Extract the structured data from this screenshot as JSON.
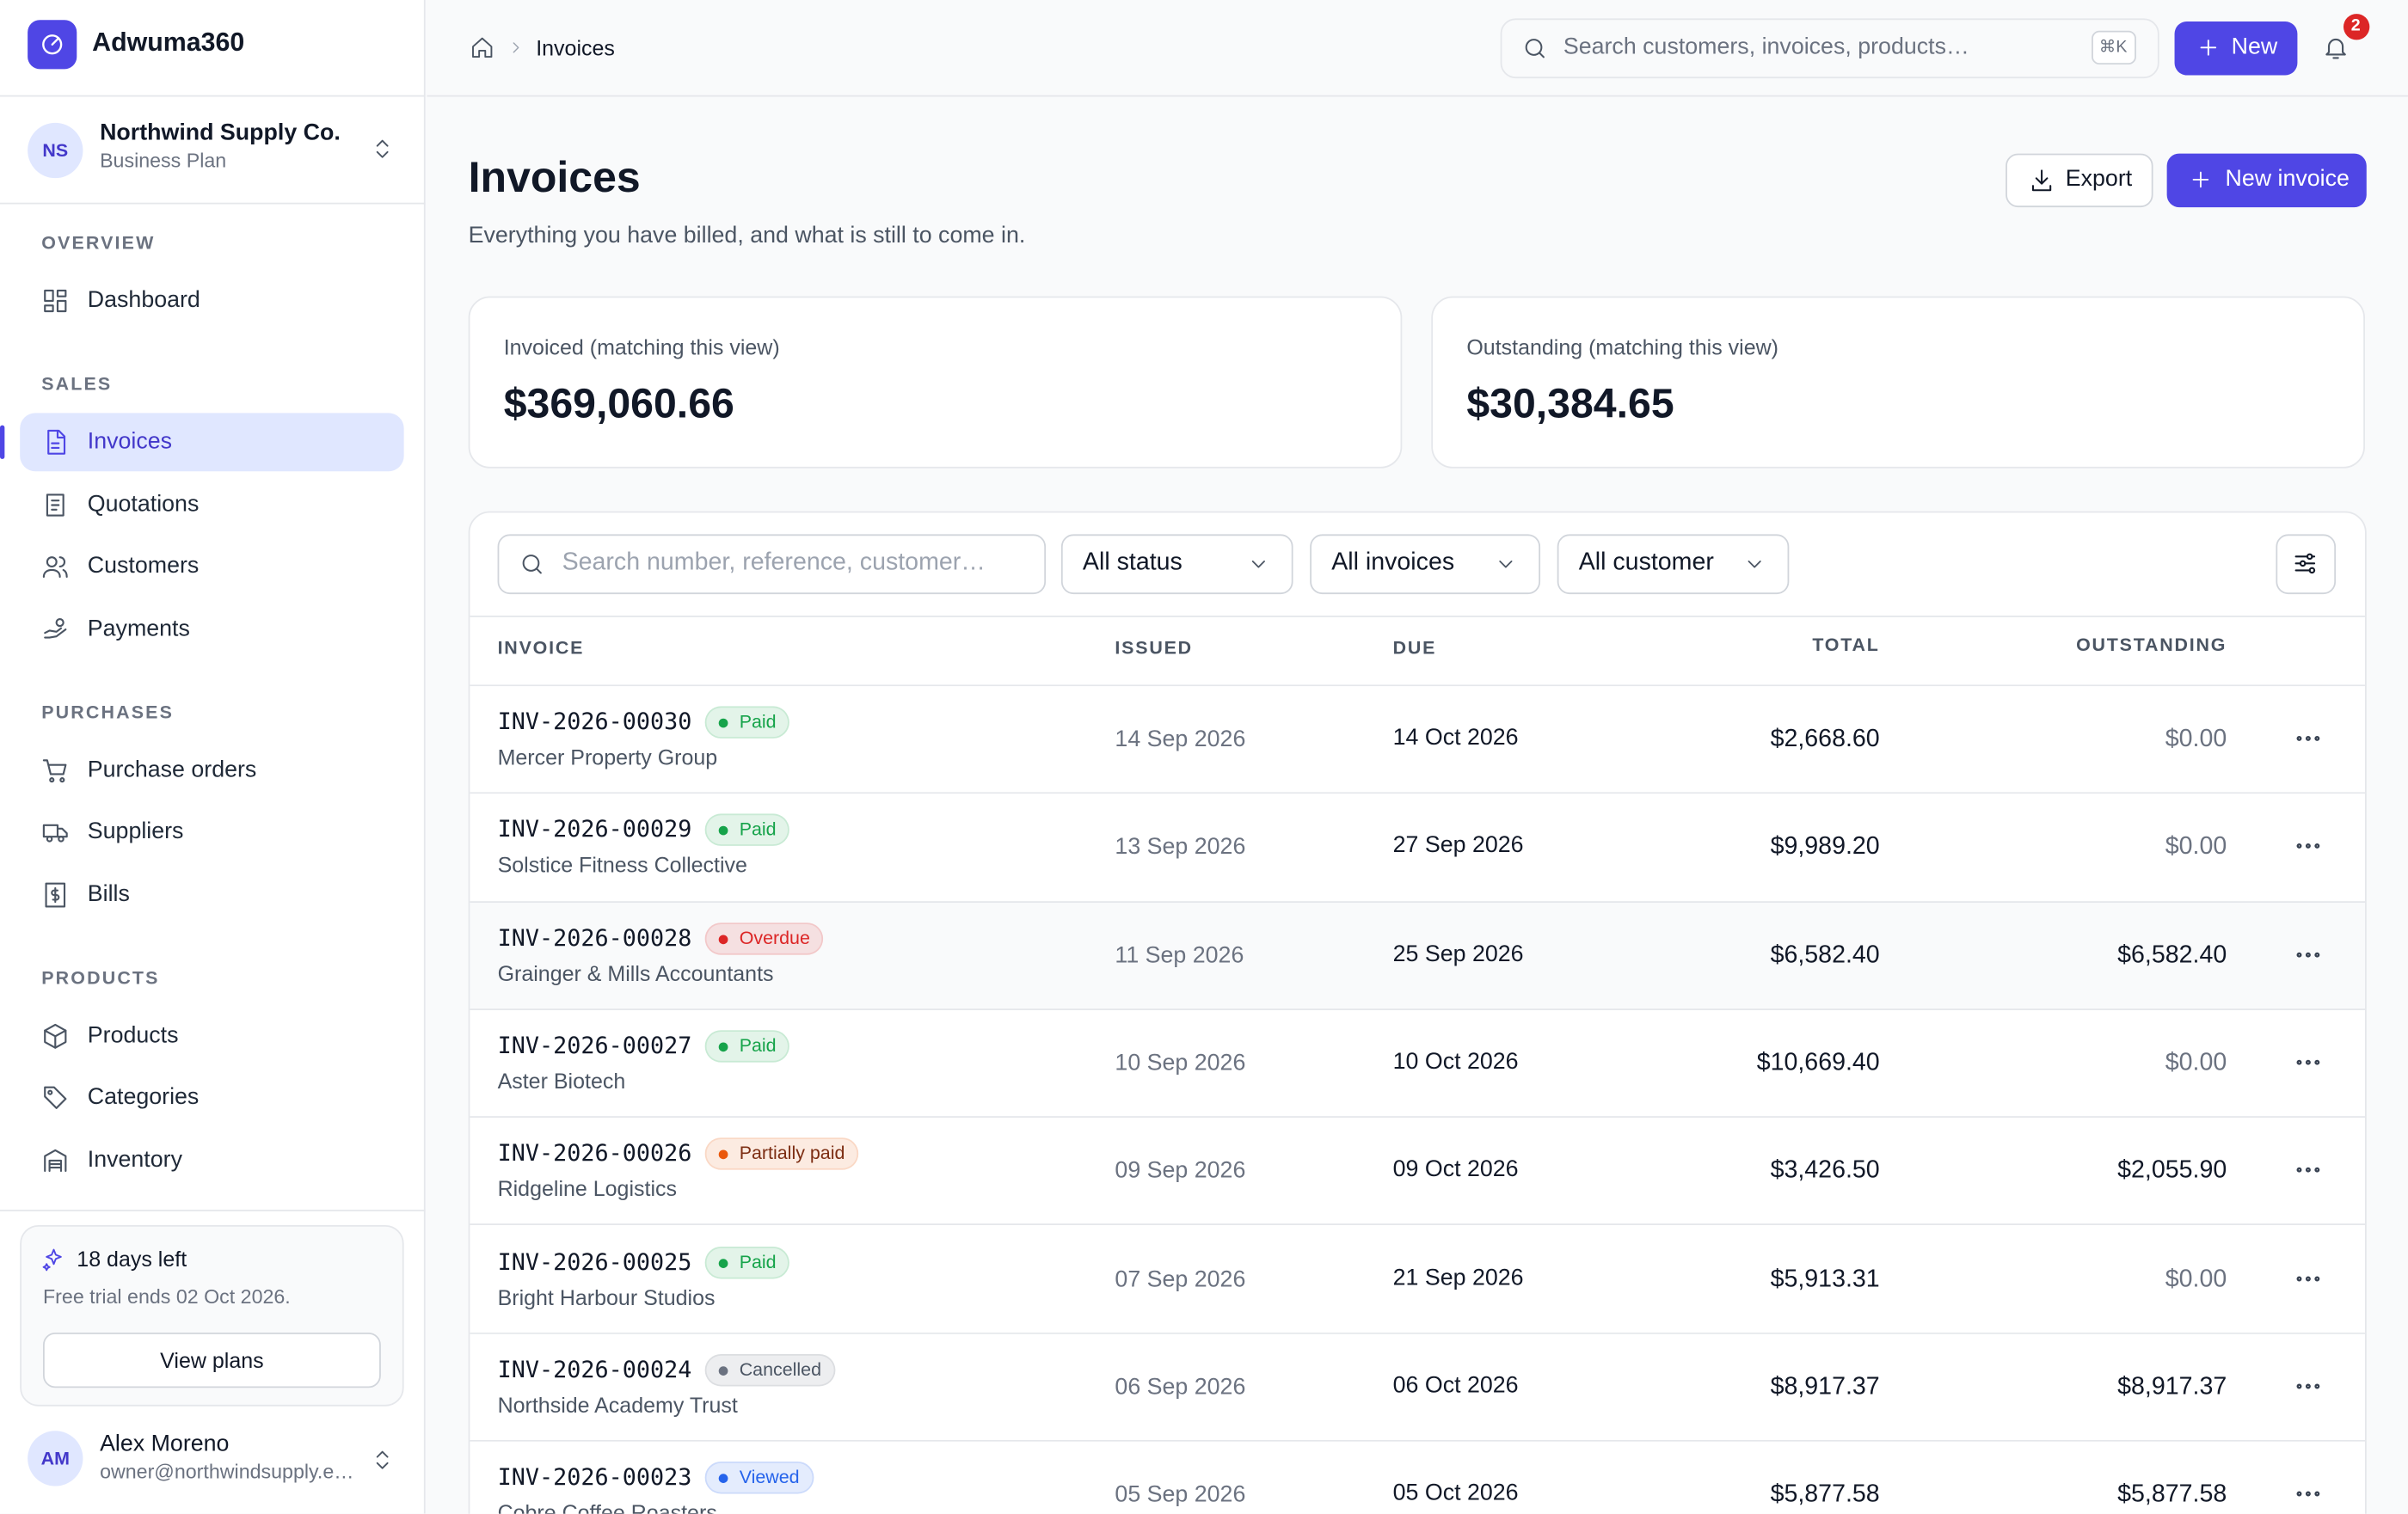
{
  "brand": {
    "name": "Adwuma360"
  },
  "org": {
    "initials": "NS",
    "name": "Northwind Supply Co.",
    "plan": "Business Plan"
  },
  "nav": [
    {
      "title": "OVERVIEW",
      "items": [
        "Dashboard"
      ]
    },
    {
      "title": "SALES",
      "items": [
        "Invoices",
        "Quotations",
        "Customers",
        "Payments"
      ]
    },
    {
      "title": "PURCHASES",
      "items": [
        "Purchase orders",
        "Suppliers",
        "Bills"
      ]
    },
    {
      "title": "PRODUCTS",
      "items": [
        "Products",
        "Categories",
        "Inventory"
      ]
    }
  ],
  "trial": {
    "title": "18 days left",
    "text": "Free trial ends 02 Oct 2026.",
    "button": "View plans"
  },
  "user": {
    "initials": "AM",
    "name": "Alex Moreno",
    "email": "owner@northwindsupply.e…"
  },
  "topbar": {
    "breadcrumb": "Invoices",
    "search_placeholder": "Search customers, invoices, products…",
    "shortcut": "⌘K",
    "new_button": "New",
    "notifications": 2
  },
  "header": {
    "title": "Invoices",
    "subtitle": "Everything you have billed, and what is still to come in.",
    "export_button": "Export",
    "new_button": "New invoice"
  },
  "stats": [
    {
      "label": "Invoiced (matching this view)",
      "value": "$369,060.66"
    },
    {
      "label": "Outstanding (matching this view)",
      "value": "$30,384.65"
    }
  ],
  "filters": {
    "search_placeholder": "Search number, reference, customer…",
    "selects": [
      "All status",
      "All invoices",
      "All customer"
    ]
  },
  "table": {
    "columns": [
      "INVOICE",
      "ISSUED",
      "DUE",
      "TOTAL",
      "OUTSTANDING"
    ],
    "rows": [
      {
        "number": "INV-2026-00030",
        "status": "Paid",
        "status_color": "#16a34a",
        "customer": "Mercer Property Group",
        "issued": "14 Sep 2026",
        "due": "14 Oct 2026",
        "total": "$2,668.60",
        "outstanding": "$0.00",
        "outstanding_color": "#6b7280"
      },
      {
        "number": "INV-2026-00029",
        "status": "Paid",
        "status_color": "#16a34a",
        "customer": "Solstice Fitness Collective",
        "issued": "13 Sep 2026",
        "due": "27 Sep 2026",
        "total": "$9,989.20",
        "outstanding": "$0.00",
        "outstanding_color": "#6b7280"
      },
      {
        "number": "INV-2026-00028",
        "status": "Overdue",
        "status_color": "#dc2626",
        "customer": "Grainger & Mills Accountants",
        "issued": "11 Sep 2026",
        "due": "25 Sep 2026",
        "total": "$6,582.40",
        "outstanding": "$6,582.40",
        "outstanding_color": "#111827"
      },
      {
        "number": "INV-2026-00027",
        "status": "Paid",
        "status_color": "#16a34a",
        "customer": "Aster Biotech",
        "issued": "10 Sep 2026",
        "due": "10 Oct 2026",
        "total": "$10,669.40",
        "outstanding": "$0.00",
        "outstanding_color": "#6b7280"
      },
      {
        "number": "INV-2026-00026",
        "status": "Partially paid",
        "status_color": "#ea580c",
        "customer": "Ridgeline Logistics",
        "issued": "09 Sep 2026",
        "due": "09 Oct 2026",
        "total": "$3,426.50",
        "outstanding": "$2,055.90",
        "outstanding_color": "#111827"
      },
      {
        "number": "INV-2026-00025",
        "status": "Paid",
        "status_color": "#16a34a",
        "customer": "Bright Harbour Studios",
        "issued": "07 Sep 2026",
        "due": "21 Sep 2026",
        "total": "$5,913.31",
        "outstanding": "$0.00",
        "outstanding_color": "#6b7280"
      },
      {
        "number": "INV-2026-00024",
        "status": "Cancelled",
        "status_color": "#6b7280",
        "customer": "Northside Academy Trust",
        "issued": "06 Sep 2026",
        "due": "06 Oct 2026",
        "total": "$8,917.37",
        "outstanding": "$8,917.37",
        "outstanding_color": "#111827"
      },
      {
        "number": "INV-2026-00023",
        "status": "Viewed",
        "status_color": "#2563eb",
        "customer": "Cobre Coffee Roasters",
        "issued": "05 Sep 2026",
        "due": "05 Oct 2026",
        "total": "$5,877.58",
        "outstanding": "$5,877.58",
        "outstanding_color": "#111827"
      }
    ]
  }
}
